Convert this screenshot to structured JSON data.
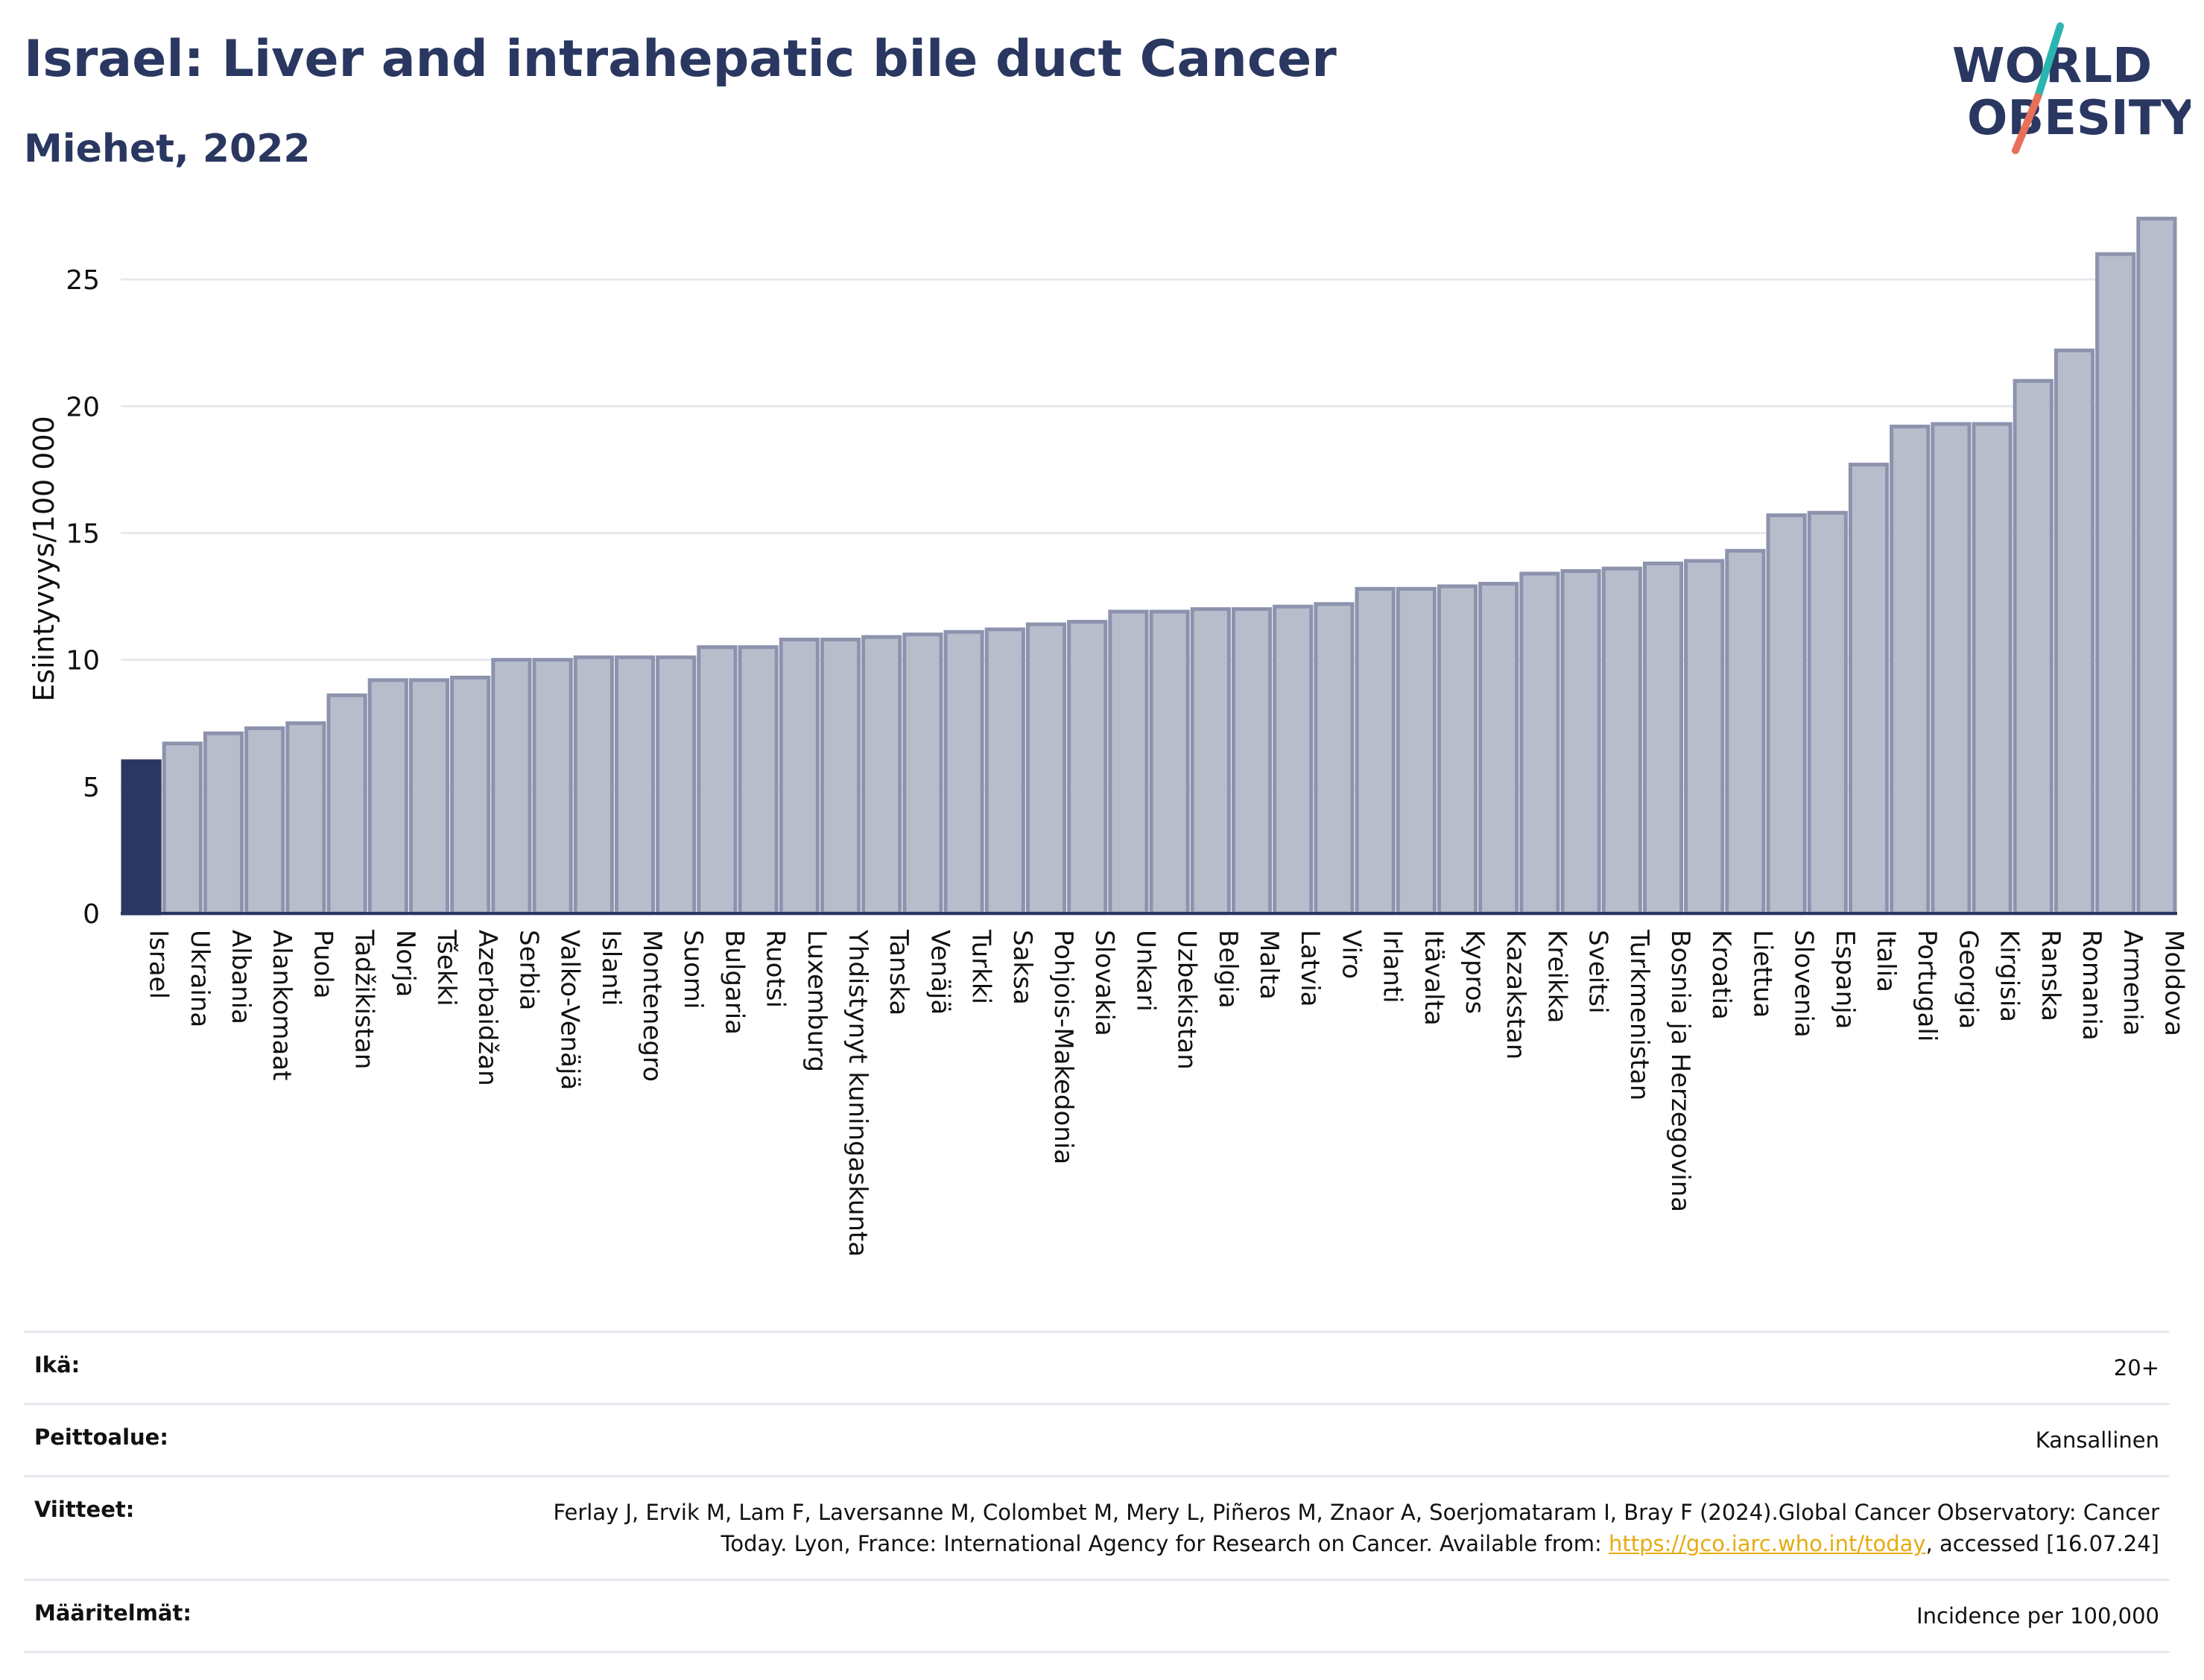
{
  "header": {
    "title": "Israel: Liver and intrahepatic bile duct Cancer",
    "subtitle": "Miehet, 2022",
    "logo_line1": "WORLD",
    "logo_line2": "OBESITY"
  },
  "colors": {
    "highlight_bar": "#2a3761",
    "bar_fill": "#b8bdcc",
    "bar_stroke": "#8d93ad",
    "text": "#2a3761",
    "link": "#e7ab11",
    "logo_teal": "#2bb5b0",
    "logo_coral": "#e8705a"
  },
  "chart_data": {
    "type": "bar",
    "ylabel": "Esiintyvyys/100 000",
    "xlabel": "",
    "ylim": [
      0,
      27.5
    ],
    "yticks": [
      0,
      5,
      10,
      15,
      20,
      25
    ],
    "grid": true,
    "highlight_category": "Israel",
    "categories": [
      "Israel",
      "Ukraina",
      "Albania",
      "Alankomaat",
      "Puola",
      "Tadžikistan",
      "Norja",
      "Tšekki",
      "Azerbaidžan",
      "Serbia",
      "Valko-Venäjä",
      "Islanti",
      "Montenegro",
      "Suomi",
      "Bulgaria",
      "Ruotsi",
      "Luxemburg",
      "Yhdistynyt kuningaskunta",
      "Tanska",
      "Venäjä",
      "Turkki",
      "Saksa",
      "Pohjois-Makedonia",
      "Slovakia",
      "Unkari",
      "Uzbekistan",
      "Belgia",
      "Malta",
      "Latvia",
      "Viro",
      "Irlanti",
      "Itävalta",
      "Kypros",
      "Kazakstan",
      "Kreikka",
      "Sveitsi",
      "Turkmenistan",
      "Bosnia ja Herzegovina",
      "Kroatia",
      "Liettua",
      "Slovenia",
      "Espanja",
      "Italia",
      "Portugali",
      "Georgia",
      "Kirgisia",
      "Ranska",
      "Romania",
      "Armenia",
      "Moldova"
    ],
    "values": [
      6.0,
      6.7,
      7.1,
      7.3,
      7.5,
      8.6,
      9.2,
      9.2,
      9.3,
      10.0,
      10.0,
      10.1,
      10.1,
      10.1,
      10.5,
      10.5,
      10.8,
      10.8,
      10.9,
      11.0,
      11.1,
      11.2,
      11.4,
      11.5,
      11.9,
      11.9,
      12.0,
      12.0,
      12.1,
      12.2,
      12.8,
      12.8,
      12.9,
      13.0,
      13.4,
      13.5,
      13.6,
      13.8,
      13.9,
      14.3,
      15.7,
      15.8,
      17.7,
      19.2,
      19.3,
      19.3,
      21.0,
      22.2,
      26.0,
      27.4
    ]
  },
  "info": {
    "age_label": "Ikä:",
    "age_value": "20+",
    "coverage_label": "Peittoalue:",
    "coverage_value": "Kansallinen",
    "references_label": "Viitteet:",
    "references_text": "Ferlay J, Ervik M, Lam F, Laversanne M, Colombet M, Mery L, Piñeros M, Znaor A, Soerjomataram I, Bray F (2024).Global Cancer Observatory: Cancer Today. Lyon, France: International Agency for Research on Cancer. Available from: ",
    "references_link": "https://gco.iarc.who.int/today",
    "references_suffix": ", accessed [16.07.24]",
    "definitions_label": "Määritelmät:",
    "definitions_value": "Incidence per 100,000"
  }
}
